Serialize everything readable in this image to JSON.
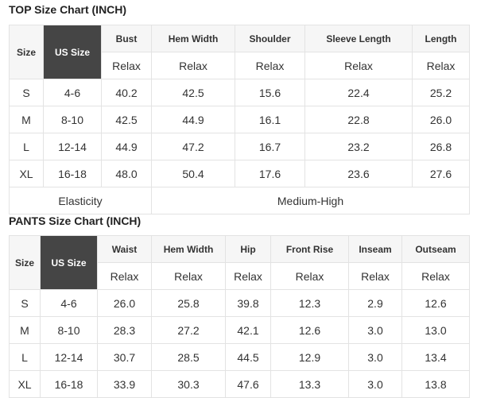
{
  "top": {
    "title": "TOP Size Chart (INCH)",
    "size_header": "Size",
    "us_size_header": "US Size",
    "columns": [
      "Bust",
      "Hem Width",
      "Shoulder",
      "Sleeve Length",
      "Length"
    ],
    "subheader": "Relax",
    "rows": [
      [
        "S",
        "4-6",
        "40.2",
        "42.5",
        "15.6",
        "22.4",
        "25.2"
      ],
      [
        "M",
        "8-10",
        "42.5",
        "44.9",
        "16.1",
        "22.8",
        "26.0"
      ],
      [
        "L",
        "12-14",
        "44.9",
        "47.2",
        "16.7",
        "23.2",
        "26.8"
      ],
      [
        "XL",
        "16-18",
        "48.0",
        "50.4",
        "17.6",
        "23.6",
        "27.6"
      ]
    ],
    "elasticity_label": "Elasticity",
    "elasticity_value": "Medium-High"
  },
  "pants": {
    "title": "PANTS Size Chart (INCH)",
    "size_header": "Size",
    "us_size_header": "US Size",
    "columns": [
      "Waist",
      "Hem Width",
      "Hip",
      "Front Rise",
      "Inseam",
      "Outseam"
    ],
    "subheader": "Relax",
    "rows": [
      [
        "S",
        "4-6",
        "26.0",
        "25.8",
        "39.8",
        "12.3",
        "2.9",
        "12.6"
      ],
      [
        "M",
        "8-10",
        "28.3",
        "27.2",
        "42.1",
        "12.6",
        "3.0",
        "13.0"
      ],
      [
        "L",
        "12-14",
        "30.7",
        "28.5",
        "44.5",
        "12.9",
        "3.0",
        "13.4"
      ],
      [
        "XL",
        "16-18",
        "33.9",
        "30.3",
        "47.6",
        "13.3",
        "3.0",
        "13.8"
      ]
    ]
  },
  "colors": {
    "us_size_bg": "#454545",
    "header_bg": "#f6f6f6",
    "border": "#e3e3e3"
  }
}
